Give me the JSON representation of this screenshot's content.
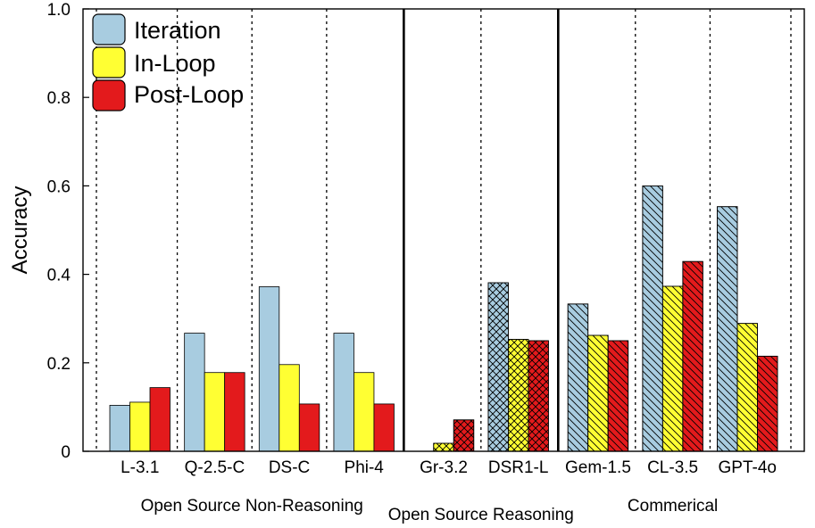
{
  "chart_data": {
    "type": "bar",
    "ylabel": "Accuracy",
    "xlabel": "",
    "ylim": [
      0,
      1.0
    ],
    "yticks": [
      0,
      0.2,
      0.4,
      0.6,
      0.8,
      1.0
    ],
    "ytick_labels": [
      "0",
      "0.2",
      "0.4",
      "0.6",
      "0.8",
      "1.0"
    ],
    "categories": [
      "L-3.1",
      "Q-2.5-C",
      "DS-C",
      "Phi-4",
      "Gr-3.2",
      "DSR1-L",
      "Gem-1.5",
      "CL-3.5",
      "GPT-4o"
    ],
    "category_group": [
      0,
      0,
      0,
      0,
      1,
      1,
      2,
      2,
      2
    ],
    "category_hatch": [
      "none",
      "none",
      "none",
      "none",
      "cross",
      "cross",
      "diag",
      "diag",
      "diag"
    ],
    "groups": [
      {
        "label": "Open Source Non-Reasoning"
      },
      {
        "label": "Open Source Reasoning"
      },
      {
        "label": "Commerical"
      }
    ],
    "series": [
      {
        "name": "Iteration",
        "color": "#a8cce0",
        "values": [
          0.104,
          0.267,
          0.372,
          0.267,
          0.0,
          0.381,
          0.333,
          0.6,
          0.553
        ]
      },
      {
        "name": "In-Loop",
        "color": "#ffff33",
        "values": [
          0.111,
          0.178,
          0.196,
          0.178,
          0.018,
          0.253,
          0.262,
          0.373,
          0.289
        ]
      },
      {
        "name": "Post-Loop",
        "color": "#e31a1c",
        "values": [
          0.144,
          0.178,
          0.107,
          0.107,
          0.071,
          0.25,
          0.25,
          0.429,
          0.215
        ]
      }
    ],
    "legend_position": "top-left",
    "grid": false
  }
}
